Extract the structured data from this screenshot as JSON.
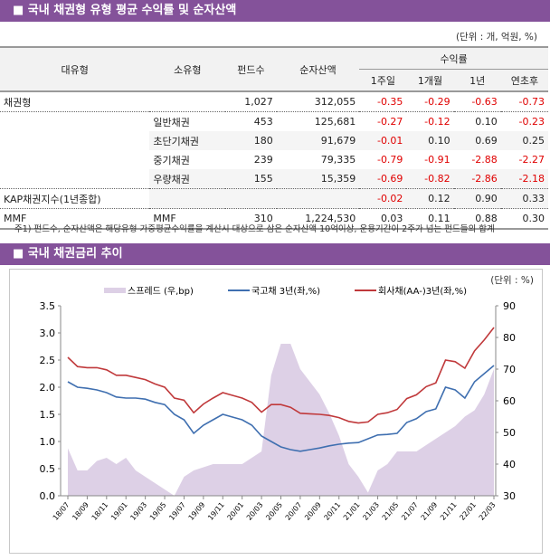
{
  "section1": {
    "title": "■ 국내 채권형 유형 평균 수익률 및 순자산액",
    "unit": "(단위 : 개, 억원, %)",
    "headers": {
      "major": "대유형",
      "minor": "소유형",
      "funds": "펀드수",
      "aum": "순자산액",
      "returns": "수익률",
      "w1": "1주일",
      "m1": "1개월",
      "y1": "1년",
      "ytd": "연초후"
    },
    "rows": [
      {
        "major": "채권형",
        "minor": "",
        "funds": "1,027",
        "aum": "312,055",
        "w1": "-0.35",
        "m1": "-0.29",
        "y1": "-0.63",
        "ytd": "-0.73"
      },
      {
        "major": "",
        "minor": "일반채권",
        "funds": "453",
        "aum": "125,681",
        "w1": "-0.27",
        "m1": "-0.12",
        "y1": "0.10",
        "ytd": "-0.23"
      },
      {
        "major": "",
        "minor": "초단기채권",
        "funds": "180",
        "aum": "91,679",
        "w1": "-0.01",
        "m1": "0.10",
        "y1": "0.69",
        "ytd": "0.25"
      },
      {
        "major": "",
        "minor": "중기채권",
        "funds": "239",
        "aum": "79,335",
        "w1": "-0.79",
        "m1": "-0.91",
        "y1": "-2.88",
        "ytd": "-2.27"
      },
      {
        "major": "",
        "minor": "우량채권",
        "funds": "155",
        "aum": "15,359",
        "w1": "-0.69",
        "m1": "-0.82",
        "y1": "-2.86",
        "ytd": "-2.18"
      },
      {
        "major": "KAP채권지수(1년종합)",
        "minor": "",
        "funds": "",
        "aum": "",
        "w1": "-0.02",
        "m1": "0.12",
        "y1": "0.90",
        "ytd": "0.33"
      },
      {
        "major": "MMF",
        "minor": "MMF",
        "funds": "310",
        "aum": "1,224,530",
        "w1": "0.03",
        "m1": "0.11",
        "y1": "0.88",
        "ytd": "0.30"
      }
    ],
    "note": "주1) 펀드수, 순자산액은 해당유형 가중평균수익률을 계산시 대상으로 삼은 순자산액 10억이상, 운용기간이 2주가 넘는 펀드들의 합계"
  },
  "section2": {
    "title": "■ 국내 채권금리 추이",
    "unit": "(단위 : %)"
  },
  "chart_data": {
    "type": "line+area",
    "x": [
      "18/07",
      "18/08",
      "18/09",
      "18/10",
      "18/11",
      "18/12",
      "19/01",
      "19/02",
      "19/03",
      "19/04",
      "19/05",
      "19/06",
      "19/07",
      "19/08",
      "19/09",
      "19/10",
      "19/11",
      "19/12",
      "20/01",
      "20/02",
      "20/03",
      "20/04",
      "20/05",
      "20/06",
      "20/07",
      "20/08",
      "20/09",
      "20/10",
      "20/11",
      "20/12",
      "21/01",
      "21/02",
      "21/03",
      "21/04",
      "21/05",
      "21/06",
      "21/07",
      "21/08",
      "21/09",
      "21/10",
      "21/11",
      "21/12",
      "22/01",
      "22/02",
      "22/03"
    ],
    "xticks": [
      "18/07",
      "18/09",
      "18/11",
      "19/01",
      "19/03",
      "19/05",
      "19/07",
      "19/09",
      "19/11",
      "20/01",
      "20/03",
      "20/05",
      "20/07",
      "20/09",
      "20/11",
      "21/01",
      "21/03",
      "21/05",
      "21/07",
      "21/09",
      "21/11",
      "22/01",
      "22/03"
    ],
    "yleft": {
      "range": [
        0,
        3.5
      ],
      "ticks": [
        "0.0",
        "0.5",
        "1.0",
        "1.5",
        "2.0",
        "2.5",
        "3.0",
        "3.5"
      ]
    },
    "yright": {
      "range": [
        30,
        90
      ],
      "ticks": [
        "30",
        "40",
        "50",
        "60",
        "70",
        "80",
        "90"
      ]
    },
    "legend_position": "top",
    "series": [
      {
        "name": "스프레드 (우,bp)",
        "axis": "right",
        "kind": "area",
        "color": "#ddd0e6",
        "values": [
          45,
          38,
          38,
          41,
          42,
          40,
          42,
          38,
          36,
          34,
          32,
          30,
          36,
          38,
          39,
          40,
          40,
          40,
          40,
          42,
          44,
          68,
          78,
          78,
          70,
          66,
          62,
          56,
          49,
          40,
          36,
          31,
          38,
          40,
          44,
          44,
          44,
          46,
          48,
          50,
          52,
          55,
          57,
          62,
          70
        ]
      },
      {
        "name": "국고채 3년(좌,%)",
        "axis": "left",
        "kind": "line",
        "color": "#3f6fb0",
        "values": [
          2.1,
          2.0,
          1.98,
          1.95,
          1.9,
          1.82,
          1.8,
          1.8,
          1.78,
          1.72,
          1.68,
          1.5,
          1.4,
          1.15,
          1.3,
          1.4,
          1.5,
          1.45,
          1.4,
          1.3,
          1.1,
          1.0,
          0.9,
          0.85,
          0.82,
          0.85,
          0.88,
          0.92,
          0.95,
          0.97,
          0.98,
          1.05,
          1.12,
          1.13,
          1.15,
          1.35,
          1.42,
          1.55,
          1.6,
          2.0,
          1.95,
          1.8,
          2.1,
          2.25,
          2.4
        ]
      },
      {
        "name": "회사채(AA-)3년(좌,%)",
        "axis": "left",
        "kind": "line",
        "color": "#c0393b",
        "values": [
          2.55,
          2.38,
          2.36,
          2.36,
          2.32,
          2.22,
          2.22,
          2.18,
          2.14,
          2.06,
          2.0,
          1.8,
          1.76,
          1.53,
          1.69,
          1.8,
          1.9,
          1.85,
          1.8,
          1.72,
          1.54,
          1.68,
          1.68,
          1.63,
          1.52,
          1.51,
          1.5,
          1.48,
          1.44,
          1.37,
          1.34,
          1.36,
          1.5,
          1.53,
          1.59,
          1.79,
          1.86,
          2.01,
          2.08,
          2.5,
          2.47,
          2.35,
          2.67,
          2.87,
          3.1
        ]
      }
    ]
  }
}
